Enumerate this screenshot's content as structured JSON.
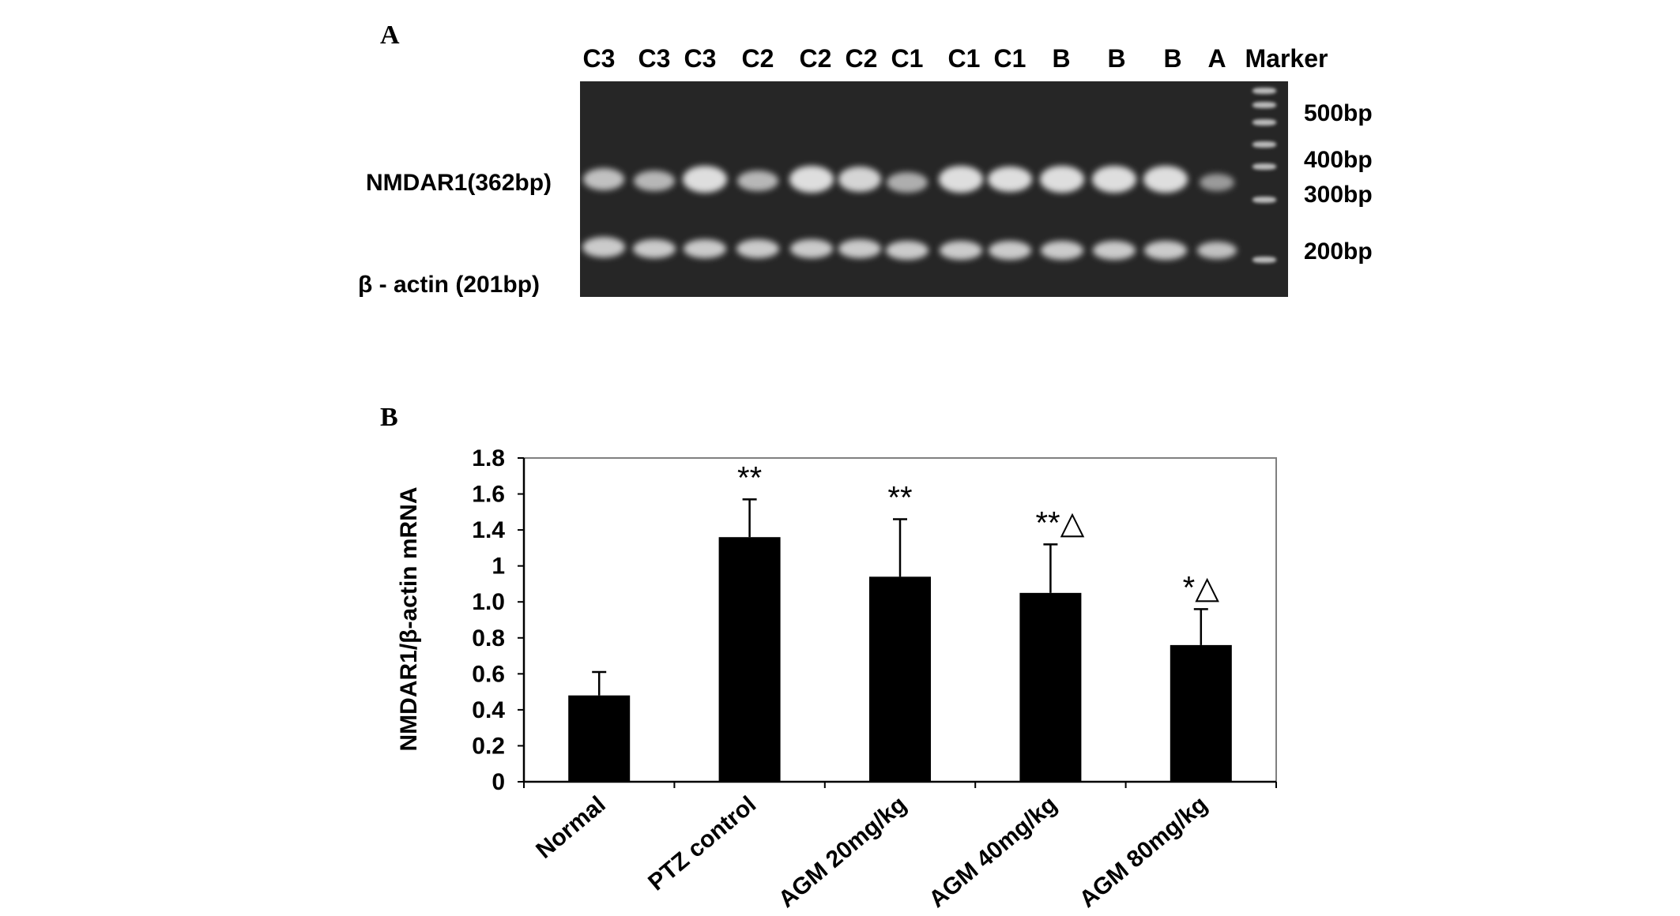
{
  "panel_a": {
    "label": "A",
    "lanes": [
      "C3",
      "C3",
      "C3",
      "C2",
      "C2",
      "C2",
      "C1",
      "C1",
      "C1",
      "B",
      "B",
      "B",
      "A",
      "Marker"
    ],
    "row_labels": {
      "nmdar1": "NMDAR1(362bp)",
      "actin": "β - actin (201bp)"
    },
    "marker_labels": [
      "500bp",
      "400bp",
      "300bp",
      "200bp"
    ]
  },
  "panel_b": {
    "label": "B"
  },
  "chart_data": {
    "type": "bar",
    "categories": [
      "Normal",
      "PTZ control",
      "AGM  20mg/kg",
      "AGM  40mg/kg",
      "AGM  80mg/kg"
    ],
    "values": [
      0.48,
      1.36,
      1.14,
      1.05,
      0.76
    ],
    "errors": [
      0.13,
      0.21,
      0.32,
      0.27,
      0.2
    ],
    "annotations": [
      "",
      "**",
      "**",
      "**△",
      "*△"
    ],
    "ylabel": "NMDAR1/β-actin mRNA",
    "yticks": [
      "0",
      "0.2",
      "0.4",
      "0.6",
      "0.8",
      "1.0",
      "1",
      "1.4",
      "1.6",
      "1.8"
    ],
    "ylim": [
      0,
      1.8
    ],
    "colors": {
      "bar": "#000000",
      "axis": "#000000",
      "frame": "#808080"
    }
  }
}
